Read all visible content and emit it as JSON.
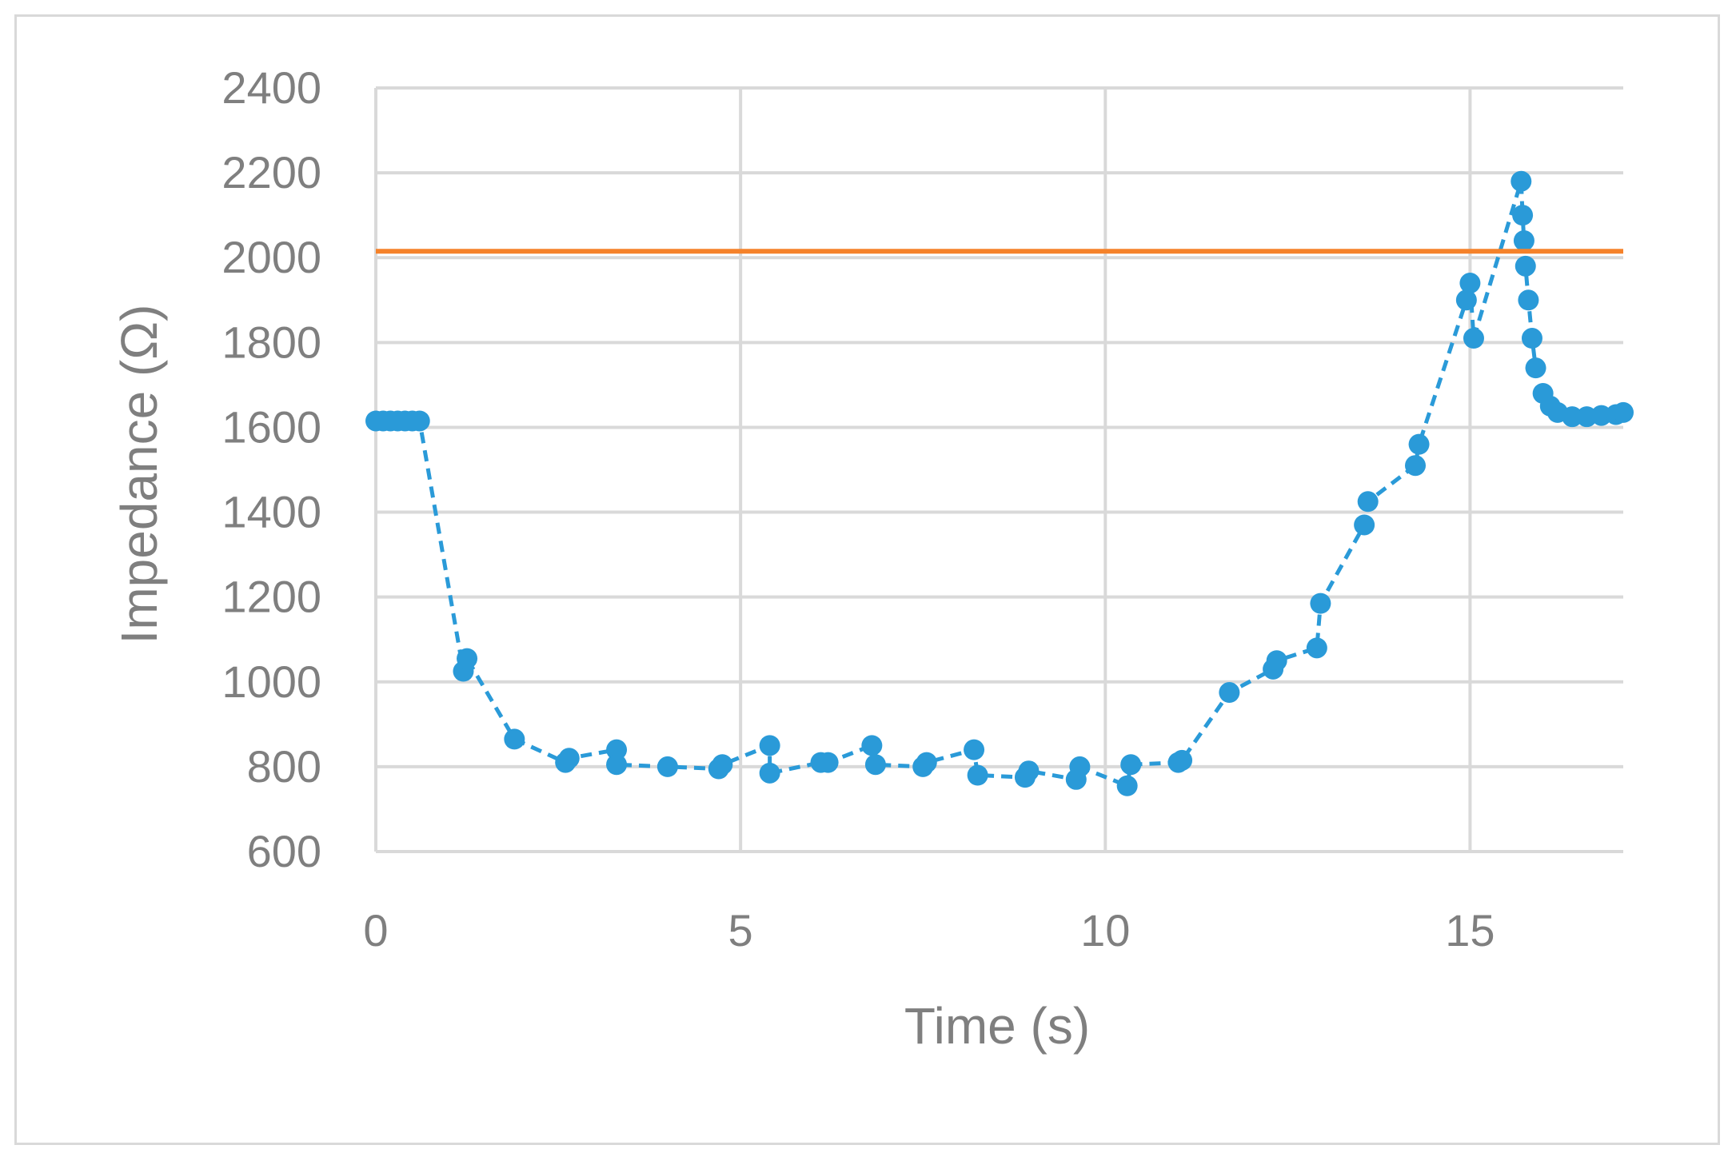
{
  "chart_data": {
    "type": "scatter",
    "xlabel": "Time (s)",
    "ylabel": "Impedance (Ω)",
    "xlim": [
      0,
      17.1
    ],
    "ylim": [
      600,
      2400
    ],
    "xticks": [
      0,
      5,
      10,
      15
    ],
    "yticks": [
      600,
      800,
      1000,
      1200,
      1400,
      1600,
      1800,
      2000,
      2200,
      2400
    ],
    "grid": true,
    "legend": "none",
    "colors": {
      "measured": "#2a9ad8",
      "threshold": "#f5822a",
      "grid": "#d9d9d9",
      "axis": "#d9d9d9",
      "text": "#7f7f7f"
    },
    "series": [
      {
        "style": "markers-dashed-line",
        "x": [
          0.0,
          0.1,
          0.2,
          0.3,
          0.4,
          0.5,
          0.6,
          1.2,
          1.25,
          1.9,
          2.6,
          2.65,
          3.3,
          3.3,
          4.0,
          4.7,
          4.75,
          5.4,
          5.4,
          6.1,
          6.2,
          6.8,
          6.85,
          7.5,
          7.55,
          8.2,
          8.25,
          8.9,
          8.95,
          9.6,
          9.65,
          10.3,
          10.35,
          11.0,
          11.05,
          11.7,
          12.3,
          12.35,
          12.9,
          12.95,
          13.55,
          13.6,
          14.25,
          14.3,
          14.95,
          15.0,
          15.05,
          15.7,
          15.72,
          15.74,
          15.76,
          15.8,
          15.85,
          15.9,
          16.0,
          16.1,
          16.2,
          16.4,
          16.6,
          16.8,
          17.0,
          17.1
        ],
        "y": [
          1615,
          1615,
          1615,
          1615,
          1615,
          1615,
          1615,
          1025,
          1055,
          865,
          810,
          820,
          840,
          805,
          800,
          795,
          805,
          850,
          785,
          810,
          810,
          850,
          805,
          800,
          810,
          840,
          780,
          775,
          790,
          770,
          800,
          755,
          805,
          810,
          815,
          975,
          1030,
          1050,
          1080,
          1185,
          1370,
          1425,
          1510,
          1560,
          1900,
          1940,
          1810,
          2180,
          2100,
          2040,
          1980,
          1900,
          1810,
          1740,
          1680,
          1650,
          1635,
          1625,
          1625,
          1628,
          1630,
          1635
        ]
      },
      {
        "style": "line",
        "x": [
          0,
          17.1
        ],
        "y": [
          2015,
          2015
        ]
      }
    ]
  }
}
